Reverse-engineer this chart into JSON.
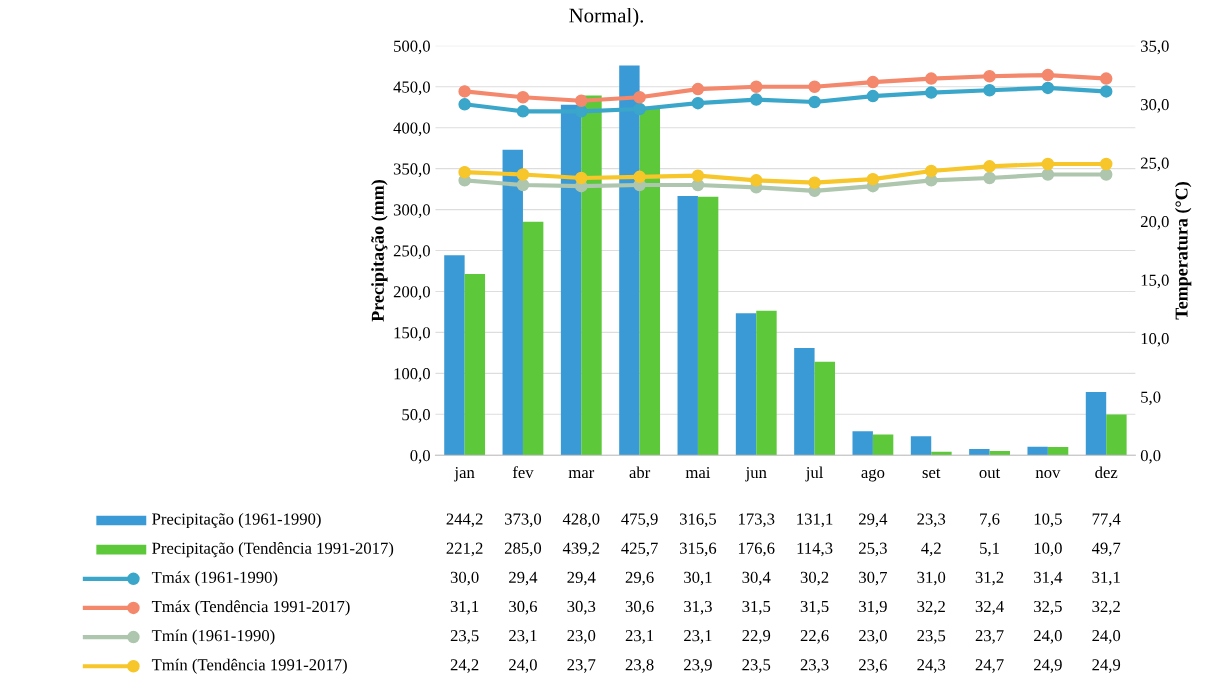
{
  "chart_data": {
    "type": "bar",
    "title": "Normal).",
    "ylabel": "Precipitação (mm)",
    "y2label": "Temperatura (°C)",
    "categories": [
      "jan",
      "fev",
      "mar",
      "abr",
      "mai",
      "jun",
      "jul",
      "ago",
      "set",
      "out",
      "nov",
      "dez"
    ],
    "series": [
      {
        "name": "Precipitação (1961-1990)",
        "color": "#3a9ad6",
        "values": [
          244.2,
          373.0,
          428.0,
          475.9,
          316.5,
          173.3,
          131.1,
          29.4,
          23.3,
          7.6,
          10.5,
          77.4
        ],
        "value_labels": [
          "244,2",
          "373,0",
          "428,0",
          "475,9",
          "316,5",
          "173,3",
          "131,1",
          "29,4",
          "23,3",
          "7,6",
          "10,5",
          "77,4"
        ]
      },
      {
        "name": "Precipitação (Tendência 1991-2017)",
        "color": "#5cc83a",
        "values": [
          221.2,
          285.0,
          439.2,
          425.7,
          315.6,
          176.6,
          114.3,
          25.3,
          4.2,
          5.1,
          10.0,
          49.7
        ],
        "value_labels": [
          "221,2",
          "285,0",
          "439,2",
          "425,7",
          "315,6",
          "176,6",
          "114,3",
          "25,3",
          "4,2",
          "5,1",
          "10,0",
          "49,7"
        ]
      },
      {
        "name": "Tmáx (1961-1990)",
        "color": "#3aa6c9",
        "type": "line",
        "axis": "y2",
        "values": [
          30.0,
          29.4,
          29.4,
          29.6,
          30.1,
          30.4,
          30.2,
          30.7,
          31.0,
          31.2,
          31.4,
          31.1
        ],
        "value_labels": [
          "30,0",
          "29,4",
          "29,4",
          "29,6",
          "30,1",
          "30,4",
          "30,2",
          "30,7",
          "31,0",
          "31,2",
          "31,4",
          "31,1"
        ]
      },
      {
        "name": "Tmáx (Tendência 1991-2017)",
        "color": "#f4886c",
        "type": "line",
        "axis": "y2",
        "values": [
          31.1,
          30.6,
          30.3,
          30.6,
          31.3,
          31.5,
          31.5,
          31.9,
          32.2,
          32.4,
          32.5,
          32.2
        ],
        "value_labels": [
          "31,1",
          "30,6",
          "30,3",
          "30,6",
          "31,3",
          "31,5",
          "31,5",
          "31,9",
          "32,2",
          "32,4",
          "32,5",
          "32,2"
        ]
      },
      {
        "name": "Tmín (1961-1990)",
        "color": "#adc6ad",
        "type": "line",
        "axis": "y2",
        "values": [
          23.5,
          23.1,
          23.0,
          23.1,
          23.1,
          22.9,
          22.6,
          23.0,
          23.5,
          23.7,
          24.0,
          24.0
        ],
        "value_labels": [
          "23,5",
          "23,1",
          "23,0",
          "23,1",
          "23,1",
          "22,9",
          "22,6",
          "23,0",
          "23,5",
          "23,7",
          "24,0",
          "24,0"
        ]
      },
      {
        "name": "Tmín (Tendência 1991-2017)",
        "color": "#f6c62a",
        "type": "line",
        "axis": "y2",
        "values": [
          24.2,
          24.0,
          23.7,
          23.8,
          23.9,
          23.5,
          23.3,
          23.6,
          24.3,
          24.7,
          24.9,
          24.9
        ],
        "value_labels": [
          "24,2",
          "24,0",
          "23,7",
          "23,8",
          "23,9",
          "23,5",
          "23,3",
          "23,6",
          "24,3",
          "24,7",
          "24,9",
          "24,9"
        ]
      }
    ],
    "ylim": [
      0,
      500
    ],
    "yticks": [
      {
        "value": 0,
        "label": "0,0"
      },
      {
        "value": 50,
        "label": "50,0"
      },
      {
        "value": 100,
        "label": "100,0"
      },
      {
        "value": 150,
        "label": "150,0"
      },
      {
        "value": 200,
        "label": "200,0"
      },
      {
        "value": 250,
        "label": "250,0"
      },
      {
        "value": 300,
        "label": "300,0"
      },
      {
        "value": 350,
        "label": "350,0"
      },
      {
        "value": 400,
        "label": "400,0"
      },
      {
        "value": 450,
        "label": "450,0"
      },
      {
        "value": 500,
        "label": "500,0"
      }
    ],
    "y2lim": [
      0,
      35
    ],
    "y2ticks": [
      {
        "value": 0,
        "label": "0,0"
      },
      {
        "value": 5,
        "label": "5,0"
      },
      {
        "value": 10,
        "label": "10,0"
      },
      {
        "value": 15,
        "label": "15,0"
      },
      {
        "value": 20,
        "label": "20,0"
      },
      {
        "value": 25,
        "label": "25,0"
      },
      {
        "value": 30,
        "label": "30,0"
      },
      {
        "value": 35,
        "label": "35,0"
      }
    ],
    "grid": "y",
    "legend": "bottom",
    "marker": "circle"
  }
}
